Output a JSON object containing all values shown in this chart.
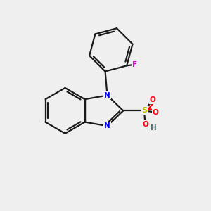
{
  "background_color": "#efefef",
  "bond_color": "#1a1a1a",
  "N_color": "#0000ff",
  "O_color": "#ff0000",
  "S_color": "#b8b800",
  "F_color": "#e000e0",
  "H_color": "#507070",
  "linewidth": 1.6,
  "figsize": [
    3.0,
    3.0
  ],
  "dpi": 100,
  "xlim": [
    0,
    10
  ],
  "ylim": [
    0,
    10
  ]
}
